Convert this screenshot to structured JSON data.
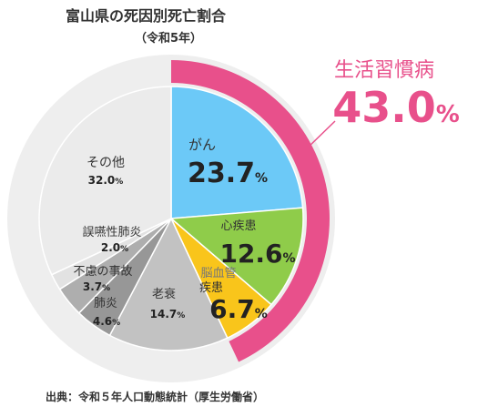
{
  "chart_data": {
    "type": "pie",
    "title": "富山県の死因別死亡割合",
    "subtitle": "（令和5年）",
    "unit": "%",
    "slices": [
      {
        "name": "がん",
        "value": 23.7,
        "value_label": "23.7",
        "color": "#6cc9f7"
      },
      {
        "name": "心疾患",
        "value": 12.6,
        "value_label": "12.6",
        "color": "#8fcc4a"
      },
      {
        "name": "脳血管疾患",
        "name_line1": "脳血管",
        "name_line2": "疾患",
        "value": 6.7,
        "value_label": "6.7",
        "color": "#f9c51b"
      },
      {
        "name": "老衰",
        "value": 14.7,
        "value_label": "14.7",
        "color": "#c2c2c2"
      },
      {
        "name": "肺炎",
        "value": 4.6,
        "value_label": "4.6",
        "color": "#979797"
      },
      {
        "name": "不慮の事故",
        "value": 3.7,
        "value_label": "3.7",
        "color": "#aeaeae"
      },
      {
        "name": "誤嚥性肺炎",
        "value": 2.0,
        "value_label": "2.0",
        "color": "#e2e2e2"
      },
      {
        "name": "その他",
        "value": 32.0,
        "value_label": "32.0",
        "color": "#ebebeb"
      }
    ],
    "group": {
      "name": "生活習慣病",
      "value": 43.0,
      "value_label": "43.0",
      "members": [
        "がん",
        "心疾患",
        "脳血管疾患"
      ],
      "color": "#e8508b"
    },
    "outer_ring_color": "#eeeeee",
    "source": "出典：令和５年人口動態統計（厚生労働省）"
  }
}
